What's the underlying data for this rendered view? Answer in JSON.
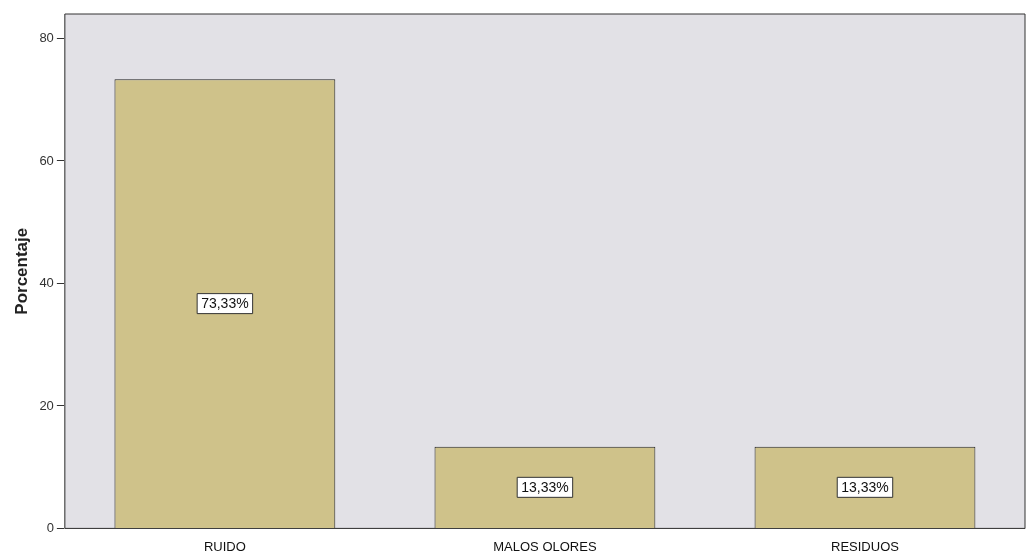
{
  "chart_data": {
    "type": "bar",
    "ylabel": "Porcentaje",
    "categories": [
      "RUIDO",
      "MALOS OLORES",
      "RESIDUOS"
    ],
    "values": [
      73.33,
      13.33,
      13.33
    ],
    "value_labels": [
      "73,33%",
      "13,33%",
      "13,33%"
    ],
    "color": "#cfc28a",
    "ylim": [
      0,
      84
    ],
    "yticks": [
      0,
      20,
      40,
      60,
      80
    ],
    "grid": false,
    "legend": false
  }
}
